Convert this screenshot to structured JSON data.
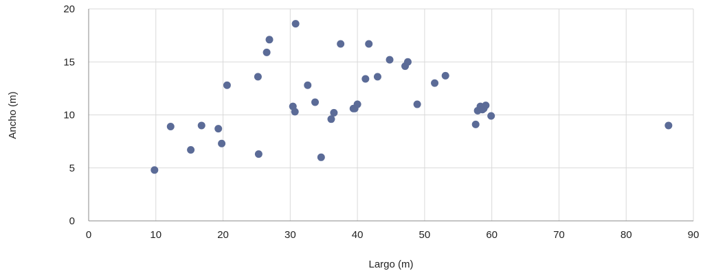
{
  "chart_data": {
    "type": "scatter",
    "xlabel": "Largo (m)",
    "ylabel": "Ancho (m)",
    "xlim": [
      0,
      90
    ],
    "ylim": [
      0,
      20
    ],
    "x_ticks": [
      0,
      10,
      20,
      30,
      40,
      50,
      60,
      70,
      80,
      90
    ],
    "y_ticks": [
      0,
      5,
      10,
      15,
      20
    ],
    "grid": true,
    "legend": "none",
    "marker_color": "#5b6b97",
    "grid_color": "#d9d9d9",
    "axis_color": "#888888",
    "series": [
      {
        "points": [
          {
            "x": 9.8,
            "y": 4.8
          },
          {
            "x": 12.2,
            "y": 8.9
          },
          {
            "x": 15.2,
            "y": 6.7
          },
          {
            "x": 16.8,
            "y": 9.0
          },
          {
            "x": 19.3,
            "y": 8.7
          },
          {
            "x": 19.8,
            "y": 7.3
          },
          {
            "x": 20.6,
            "y": 12.8
          },
          {
            "x": 25.2,
            "y": 13.6
          },
          {
            "x": 25.3,
            "y": 6.3
          },
          {
            "x": 26.5,
            "y": 15.9
          },
          {
            "x": 26.9,
            "y": 17.1
          },
          {
            "x": 30.4,
            "y": 10.8
          },
          {
            "x": 30.7,
            "y": 10.3
          },
          {
            "x": 30.8,
            "y": 18.6
          },
          {
            "x": 32.6,
            "y": 12.8
          },
          {
            "x": 33.7,
            "y": 11.2
          },
          {
            "x": 34.6,
            "y": 6.0
          },
          {
            "x": 36.1,
            "y": 9.6
          },
          {
            "x": 36.5,
            "y": 10.2
          },
          {
            "x": 37.5,
            "y": 16.7
          },
          {
            "x": 39.4,
            "y": 10.6
          },
          {
            "x": 39.6,
            "y": 10.6
          },
          {
            "x": 40.0,
            "y": 11.0
          },
          {
            "x": 41.2,
            "y": 13.4
          },
          {
            "x": 41.7,
            "y": 16.7
          },
          {
            "x": 43.0,
            "y": 13.6
          },
          {
            "x": 44.8,
            "y": 15.2
          },
          {
            "x": 47.1,
            "y": 14.6
          },
          {
            "x": 47.5,
            "y": 15.0
          },
          {
            "x": 48.9,
            "y": 11.0
          },
          {
            "x": 51.5,
            "y": 13.0
          },
          {
            "x": 53.1,
            "y": 13.7
          },
          {
            "x": 57.6,
            "y": 9.1
          },
          {
            "x": 57.9,
            "y": 10.4
          },
          {
            "x": 58.3,
            "y": 10.8
          },
          {
            "x": 58.6,
            "y": 10.5
          },
          {
            "x": 58.8,
            "y": 10.6
          },
          {
            "x": 59.1,
            "y": 10.9
          },
          {
            "x": 59.9,
            "y": 9.9
          },
          {
            "x": 86.3,
            "y": 9.0
          }
        ]
      }
    ]
  }
}
